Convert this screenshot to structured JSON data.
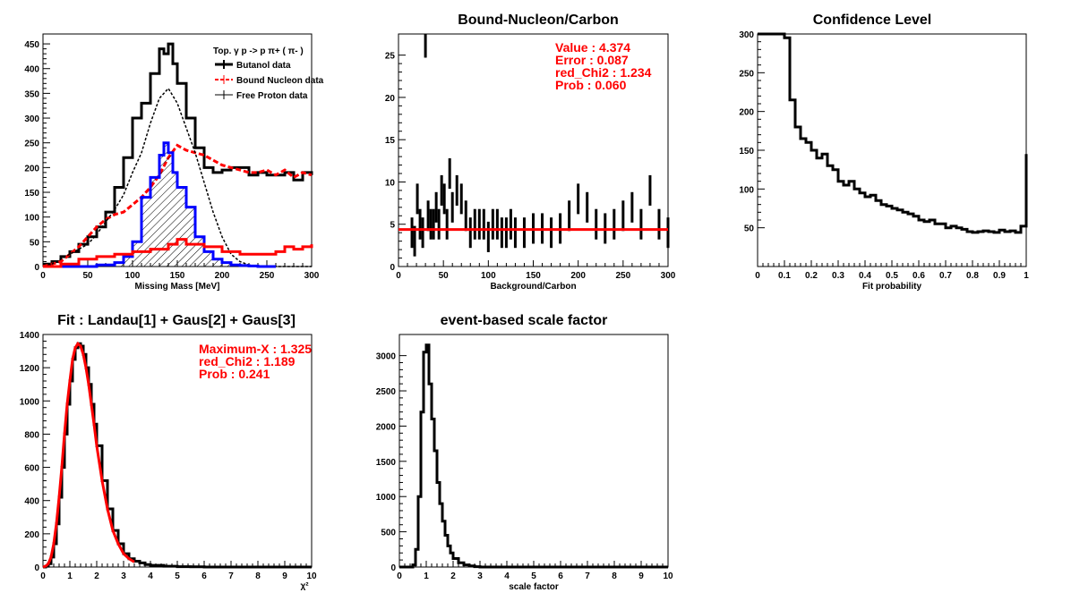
{
  "chart_data": [
    {
      "id": "missing_mass",
      "type": "line",
      "title": "",
      "xlabel": "Missing Mass [MeV]",
      "ylabel": "",
      "xlim": [
        0,
        300
      ],
      "ylim": [
        0,
        470
      ],
      "xticks": [
        0,
        50,
        100,
        150,
        200,
        250,
        300
      ],
      "yticks": [
        0,
        50,
        100,
        150,
        200,
        250,
        300,
        350,
        400,
        450
      ],
      "grid": false,
      "legend": {
        "placement": "top-right",
        "title": "Top.  γ p -> p  π+ ( π- )",
        "entries": [
          "Butanol data",
          "Bound Nucleon data",
          "Free Proton data"
        ]
      },
      "series": [
        {
          "name": "Butanol data",
          "color": "#000000",
          "style": "thick-step",
          "x": [
            0,
            10,
            20,
            30,
            40,
            50,
            60,
            70,
            80,
            90,
            100,
            110,
            120,
            130,
            135,
            140,
            145,
            150,
            160,
            170,
            180,
            190,
            200,
            210,
            220,
            230,
            240,
            250,
            260,
            270,
            280,
            290,
            300
          ],
          "y": [
            5,
            10,
            20,
            30,
            45,
            60,
            80,
            110,
            160,
            220,
            300,
            330,
            390,
            440,
            430,
            450,
            410,
            370,
            300,
            240,
            200,
            190,
            195,
            200,
            200,
            185,
            190,
            185,
            185,
            190,
            175,
            190,
            185
          ]
        },
        {
          "name": "Bound Nucleon data",
          "color": "#ff0000",
          "style": "dashed-errorbars",
          "x": [
            0,
            10,
            20,
            30,
            40,
            50,
            60,
            70,
            80,
            90,
            100,
            110,
            120,
            130,
            140,
            150,
            160,
            170,
            180,
            190,
            200,
            210,
            220,
            230,
            240,
            250,
            260,
            270,
            280,
            290,
            300
          ],
          "y": [
            0,
            5,
            10,
            25,
            40,
            60,
            80,
            95,
            105,
            110,
            125,
            140,
            160,
            185,
            220,
            245,
            235,
            230,
            225,
            215,
            205,
            200,
            195,
            190,
            190,
            195,
            185,
            195,
            180,
            190,
            185
          ]
        },
        {
          "name": "Free Proton data",
          "color": "#000000",
          "style": "thin-errorbars",
          "x": [
            0,
            10,
            20,
            30,
            40,
            50,
            60,
            70,
            80,
            90,
            100,
            110,
            120,
            130,
            140,
            150,
            160,
            170,
            180,
            190,
            200,
            210,
            220,
            230,
            240,
            250,
            260,
            270,
            280,
            290,
            300
          ],
          "y": [
            0,
            5,
            15,
            25,
            35,
            45,
            65,
            90,
            115,
            145,
            190,
            230,
            290,
            340,
            360,
            330,
            280,
            230,
            170,
            110,
            60,
            25,
            10,
            3,
            0,
            0,
            0,
            0,
            0,
            0,
            0
          ]
        },
        {
          "name": "",
          "color": "#0000ff",
          "style": "hatched-fill",
          "x": [
            0,
            20,
            40,
            60,
            80,
            90,
            100,
            110,
            120,
            130,
            135,
            140,
            145,
            150,
            160,
            170,
            180,
            190,
            200,
            210,
            220,
            230,
            240,
            250,
            260
          ],
          "y": [
            0,
            0,
            0,
            3,
            8,
            20,
            50,
            140,
            180,
            225,
            250,
            230,
            190,
            160,
            120,
            60,
            30,
            15,
            8,
            3,
            2,
            1,
            0,
            0,
            0
          ]
        },
        {
          "name": "",
          "color": "#ff0000",
          "style": "thick-step",
          "x": [
            0,
            20,
            40,
            60,
            80,
            100,
            120,
            140,
            150,
            160,
            180,
            200,
            220,
            240,
            260,
            270,
            280,
            290,
            300
          ],
          "y": [
            0,
            5,
            15,
            20,
            25,
            30,
            35,
            45,
            55,
            45,
            40,
            30,
            25,
            25,
            30,
            40,
            35,
            40,
            45
          ]
        }
      ]
    },
    {
      "id": "bound_nucleon_carbon",
      "type": "scatter",
      "title": "Bound-Nucleon/Carbon",
      "xlabel": "Background/Carbon",
      "ylabel": "",
      "xlim": [
        0,
        300
      ],
      "ylim": [
        0,
        27.5
      ],
      "xticks": [
        0,
        50,
        100,
        150,
        200,
        250,
        300
      ],
      "yticks": [
        0,
        5,
        10,
        15,
        20,
        25
      ],
      "grid": false,
      "fit_line": {
        "y": 4.374,
        "color": "#ff0000"
      },
      "annotations": [
        "Value : 4.374",
        "Error : 0.087",
        "red_Chi2 : 1.234",
        "Prob : 0.060"
      ],
      "series": [
        {
          "name": "",
          "color": "#000000",
          "x": [
            15,
            18,
            21,
            24,
            27,
            30,
            33,
            36,
            39,
            42,
            45,
            48,
            51,
            54,
            57,
            60,
            65,
            70,
            75,
            80,
            85,
            90,
            95,
            100,
            105,
            110,
            115,
            120,
            125,
            130,
            140,
            150,
            160,
            170,
            180,
            190,
            200,
            210,
            220,
            230,
            240,
            250,
            260,
            270,
            280,
            290,
            300
          ],
          "y": [
            4,
            3,
            8,
            5,
            4,
            26.5,
            6,
            5,
            5,
            7,
            5,
            9,
            8,
            5,
            11,
            7,
            9,
            8,
            6,
            4,
            5,
            5,
            5,
            3.5,
            5,
            5,
            4,
            4,
            5,
            4,
            4,
            4.5,
            4.5,
            4,
            4.5,
            6,
            8,
            7,
            5,
            4.5,
            5,
            6,
            7,
            5,
            9,
            5,
            4
          ]
        }
      ]
    },
    {
      "id": "confidence_level",
      "type": "line",
      "title": "Confidence Level",
      "xlabel": "Fit probability",
      "ylabel": "",
      "xlim": [
        0,
        1
      ],
      "ylim": [
        0,
        300
      ],
      "xticks": [
        0,
        0.1,
        0.2,
        0.3,
        0.4,
        0.5,
        0.6,
        0.7,
        0.8,
        0.9,
        1
      ],
      "yticks": [
        50,
        100,
        150,
        200,
        250,
        300
      ],
      "grid": false,
      "series": [
        {
          "name": "",
          "color": "#000000",
          "x": [
            0,
            0.02,
            0.04,
            0.06,
            0.08,
            0.1,
            0.12,
            0.14,
            0.16,
            0.18,
            0.2,
            0.22,
            0.24,
            0.26,
            0.28,
            0.3,
            0.32,
            0.34,
            0.36,
            0.38,
            0.4,
            0.42,
            0.44,
            0.46,
            0.48,
            0.5,
            0.52,
            0.54,
            0.56,
            0.58,
            0.6,
            0.62,
            0.64,
            0.66,
            0.68,
            0.7,
            0.72,
            0.74,
            0.76,
            0.78,
            0.8,
            0.82,
            0.84,
            0.86,
            0.88,
            0.9,
            0.92,
            0.94,
            0.96,
            0.98,
            1
          ],
          "y": [
            300,
            300,
            300,
            300,
            300,
            295,
            215,
            180,
            165,
            160,
            150,
            140,
            145,
            130,
            125,
            110,
            105,
            110,
            100,
            95,
            90,
            92,
            85,
            80,
            78,
            75,
            73,
            70,
            68,
            65,
            60,
            58,
            60,
            55,
            55,
            50,
            52,
            50,
            48,
            45,
            44,
            45,
            46,
            45,
            44,
            47,
            45,
            46,
            44,
            52,
            145
          ]
        }
      ]
    },
    {
      "id": "landau_gaus_fit",
      "type": "line",
      "title": "Fit : Landau[1] + Gaus[2] + Gaus[3]",
      "xlabel": "χ²",
      "ylabel": "",
      "xlim": [
        0,
        10
      ],
      "ylim": [
        0,
        1400
      ],
      "xticks": [
        0,
        1,
        2,
        3,
        4,
        5,
        6,
        7,
        8,
        9,
        10
      ],
      "yticks": [
        0,
        200,
        400,
        600,
        800,
        1000,
        1200,
        1400
      ],
      "grid": false,
      "annotations": [
        "Maximum-X : 1.325",
        "red_Chi2 : 1.189",
        "Prob : 0.241"
      ],
      "series": [
        {
          "name": "",
          "color": "#000000",
          "style": "histogram",
          "x": [
            0,
            0.1,
            0.2,
            0.3,
            0.4,
            0.5,
            0.6,
            0.7,
            0.8,
            0.9,
            1.0,
            1.1,
            1.2,
            1.3,
            1.4,
            1.5,
            1.6,
            1.7,
            1.8,
            1.9,
            2.0,
            2.2,
            2.4,
            2.6,
            2.8,
            3.0,
            3.2,
            3.4,
            3.6,
            3.8,
            4.0,
            4.5,
            5.0,
            5.5,
            6.0,
            10
          ],
          "y": [
            0,
            5,
            20,
            60,
            140,
            260,
            420,
            600,
            800,
            980,
            1120,
            1250,
            1320,
            1345,
            1330,
            1280,
            1200,
            1100,
            980,
            860,
            730,
            520,
            350,
            220,
            140,
            80,
            50,
            35,
            25,
            15,
            10,
            5,
            2,
            1,
            0,
            0
          ]
        },
        {
          "name": "",
          "color": "#ff0000",
          "style": "fit-curve",
          "x": [
            0,
            0.1,
            0.2,
            0.3,
            0.4,
            0.5,
            0.6,
            0.7,
            0.8,
            0.9,
            1.0,
            1.1,
            1.2,
            1.3,
            1.4,
            1.5,
            1.6,
            1.7,
            1.8,
            1.9,
            2.0,
            2.2,
            2.4,
            2.6,
            2.8,
            3.0,
            3.2,
            3.4
          ],
          "y": [
            0,
            5,
            20,
            60,
            140,
            260,
            420,
            600,
            800,
            980,
            1120,
            1250,
            1320,
            1345,
            1330,
            1280,
            1200,
            1100,
            980,
            860,
            730,
            520,
            350,
            220,
            140,
            80,
            50,
            30
          ]
        }
      ]
    },
    {
      "id": "scale_factor",
      "type": "line",
      "title": "event-based scale factor",
      "xlabel": "scale factor",
      "ylabel": "",
      "xlim": [
        0,
        10
      ],
      "ylim": [
        0,
        3300
      ],
      "xticks": [
        0,
        1,
        2,
        3,
        4,
        5,
        6,
        7,
        8,
        9,
        10
      ],
      "yticks": [
        0,
        500,
        1000,
        1500,
        2000,
        2500,
        3000
      ],
      "grid": false,
      "series": [
        {
          "name": "",
          "color": "#000000",
          "style": "histogram",
          "x": [
            0,
            0.4,
            0.5,
            0.6,
            0.7,
            0.8,
            0.9,
            1.0,
            1.1,
            1.2,
            1.3,
            1.4,
            1.5,
            1.6,
            1.7,
            1.8,
            1.9,
            2.0,
            2.2,
            2.4,
            2.6,
            2.8,
            3.0,
            10
          ],
          "y": [
            0,
            0,
            30,
            250,
            1000,
            2200,
            3050,
            3150,
            2600,
            2100,
            1650,
            1200,
            900,
            650,
            450,
            300,
            200,
            120,
            60,
            30,
            15,
            5,
            0,
            0
          ]
        }
      ]
    }
  ]
}
